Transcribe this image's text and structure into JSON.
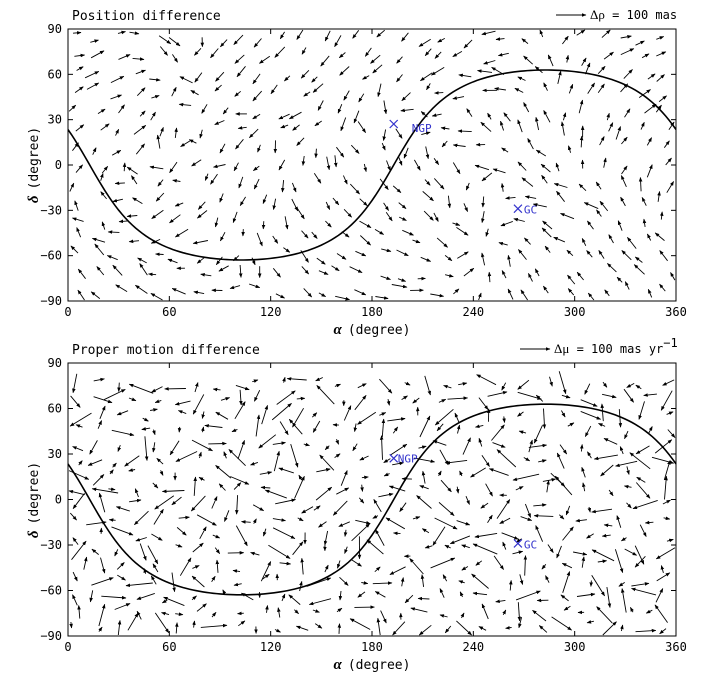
{
  "chart_data": [
    {
      "type": "quiver",
      "title": "Position difference",
      "xlabel_symbol": "α",
      "xlabel_unit": "(degree)",
      "ylabel_symbol": "δ",
      "ylabel_unit": "(degree)",
      "xlim": [
        0,
        360
      ],
      "ylim": [
        -90,
        90
      ],
      "xticks": [
        0,
        60,
        120,
        180,
        240,
        300,
        360
      ],
      "yticks": [
        90,
        60,
        30,
        0,
        -30,
        -60,
        -90
      ],
      "ytick_labels": [
        "90",
        "60",
        "30",
        "0",
        "−30",
        "−60",
        "−90"
      ],
      "legend": {
        "symbol": "Δρ",
        "text": " = 100 mas",
        "position": "top-right",
        "reference_value": 100
      },
      "great_circle_inclination_deg": 62.87,
      "markers": [
        {
          "name": "NGP",
          "ra": 192.86,
          "dec": 27.13
        },
        {
          "name": "GC",
          "ra": 266.4,
          "dec": -28.94
        }
      ],
      "vector_field": {
        "grid_step_ra": 12,
        "grid_step_dec": 12,
        "scale_deg_per_unit": 0.13,
        "model": "rotation-like position offsets up to ~100 mas",
        "mag_base": 35,
        "mag_amp": 60
      }
    },
    {
      "type": "quiver",
      "title": "Proper motion difference",
      "xlabel_symbol": "α",
      "xlabel_unit": "(degree)",
      "ylabel_symbol": "δ",
      "ylabel_unit": "(degree)",
      "xlim": [
        0,
        360
      ],
      "ylim": [
        -90,
        90
      ],
      "xticks": [
        0,
        60,
        120,
        180,
        240,
        300,
        360
      ],
      "yticks": [
        90,
        60,
        30,
        0,
        -30,
        -60,
        -90
      ],
      "ytick_labels": [
        "90",
        "60",
        "30",
        "0",
        "−30",
        "−60",
        "−90"
      ],
      "legend": {
        "symbol": "Δμ",
        "text": " = 100 mas yr",
        "superscript": "−1",
        "position": "top-right",
        "reference_value": 100
      },
      "great_circle_inclination_deg": 62.87,
      "markers": [
        {
          "name": "NGP",
          "ra": 192.86,
          "dec": 27.13
        },
        {
          "name": "GC",
          "ra": 266.4,
          "dec": -28.94
        }
      ],
      "vector_field": {
        "grid_step_ra": 12,
        "grid_step_dec": 10,
        "scale_deg_per_unit": 0.14,
        "model": "mostly random proper-motion residuals up to ~120 mas/yr",
        "mag_base": 25,
        "mag_amp": 90
      }
    }
  ]
}
